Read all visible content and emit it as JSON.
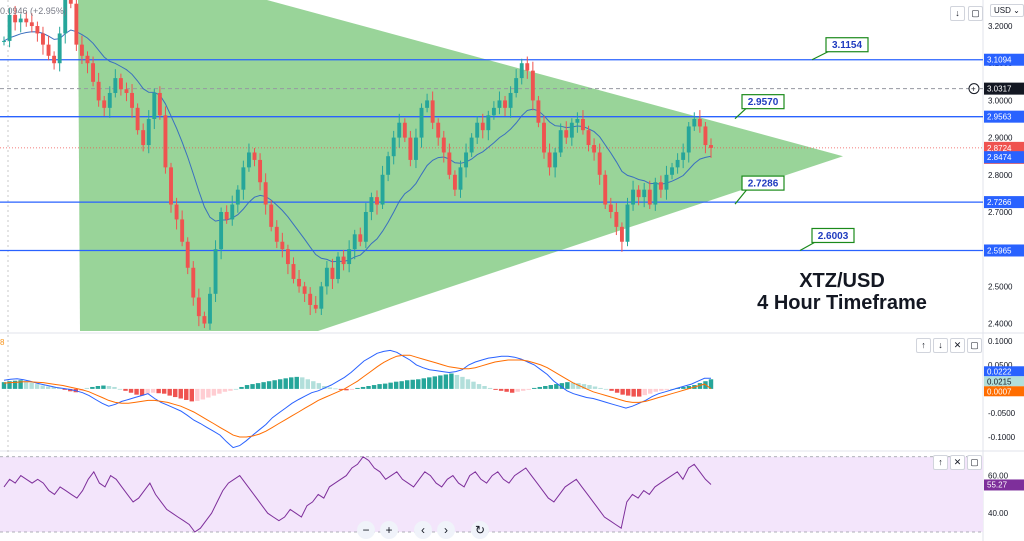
{
  "header": {
    "ticker_change": "0.0946 (+2.95%)",
    "currency_label": "USD",
    "currency_chevron": "chevron-down-icon"
  },
  "side_fragment": "8",
  "toolbar": {
    "main_pane_icons": [
      "arrow-down-icon",
      "maximize-icon"
    ],
    "macd_pane_icons": [
      "arrow-up-icon",
      "arrow-down-icon",
      "close-icon",
      "maximize-icon"
    ],
    "rsi_pane_icons": [
      "arrow-up-icon",
      "close-icon",
      "maximize-icon"
    ]
  },
  "navigation": {
    "buttons": [
      {
        "icon": "minus-icon",
        "glyph": "−"
      },
      {
        "icon": "plus-icon",
        "glyph": "+"
      },
      {
        "icon": "chevron-left-icon",
        "glyph": "‹"
      },
      {
        "icon": "chevron-right-icon",
        "glyph": "›"
      },
      {
        "icon": "reset-icon",
        "glyph": "↻"
      }
    ]
  },
  "colors": {
    "up": "#26a69a",
    "down": "#ef5350",
    "triangle": "#7fc97f",
    "hline": "#2962ff",
    "ma": "#3a6fbf",
    "macd_line": "#2962ff",
    "signal_line": "#ff6d00",
    "rsi_line": "#7e2f9b",
    "rsi_band": "#f3e5fb",
    "price_badge": "#ef5350",
    "current_dark": "#131722",
    "fast_ma_badge": "#2962ff"
  },
  "chart_data": [
    {
      "type": "candlestick",
      "title": "XTZ/USD",
      "subtitle": "4 Hour Timeframe",
      "ylim": [
        2.38,
        3.27
      ],
      "y_ticks": [
        2.4,
        2.5,
        2.6,
        2.7,
        2.8,
        2.9,
        3.0,
        3.1,
        3.2
      ],
      "y_tick_labels": [
        "2.4000",
        "2.5000",
        "2.6000",
        "2.7000",
        "2.8000",
        "2.9000",
        "3.0000",
        "3.1000",
        "3.2000"
      ],
      "close_path": [
        3.16,
        3.23,
        3.21,
        3.22,
        3.21,
        3.2,
        3.18,
        3.15,
        3.12,
        3.1,
        3.18,
        3.28,
        3.26,
        3.15,
        3.12,
        3.1,
        3.05,
        3.0,
        2.98,
        3.02,
        3.06,
        3.03,
        3.02,
        2.98,
        2.92,
        2.88,
        2.95,
        3.02,
        2.96,
        2.82,
        2.72,
        2.68,
        2.62,
        2.55,
        2.47,
        2.42,
        2.4,
        2.48,
        2.6,
        2.7,
        2.68,
        2.72,
        2.76,
        2.82,
        2.86,
        2.84,
        2.78,
        2.72,
        2.66,
        2.62,
        2.6,
        2.56,
        2.52,
        2.5,
        2.48,
        2.45,
        2.44,
        2.5,
        2.55,
        2.52,
        2.58,
        2.56,
        2.6,
        2.64,
        2.62,
        2.7,
        2.74,
        2.72,
        2.8,
        2.85,
        2.9,
        2.94,
        2.9,
        2.84,
        2.9,
        2.98,
        3.0,
        2.94,
        2.9,
        2.86,
        2.8,
        2.76,
        2.82,
        2.86,
        2.9,
        2.94,
        2.92,
        2.96,
        2.98,
        3.0,
        2.98,
        3.02,
        3.06,
        3.1,
        3.08,
        3.0,
        2.94,
        2.86,
        2.82,
        2.86,
        2.92,
        2.9,
        2.94,
        2.95,
        2.92,
        2.88,
        2.86,
        2.8,
        2.72,
        2.7,
        2.66,
        2.62,
        2.72,
        2.76,
        2.74,
        2.76,
        2.72,
        2.78,
        2.76,
        2.8,
        2.82,
        2.84,
        2.86,
        2.93,
        2.95,
        2.93,
        2.88,
        2.8724
      ],
      "horizontal_levels": [
        {
          "value": 3.1094,
          "label": "3.1094"
        },
        {
          "value": 2.9563,
          "label": "2.9563"
        },
        {
          "value": 2.7266,
          "label": "2.7266"
        },
        {
          "value": 2.5965,
          "label": "2.5965"
        }
      ],
      "dashed_level": {
        "value": 3.0317,
        "label": "3.0317"
      },
      "current_price": {
        "value": 2.8724,
        "label": "2.8724",
        "countdown": "55:08"
      },
      "moving_average": {
        "value": 2.8474,
        "label": "2.8474"
      },
      "annotations": [
        {
          "text": "3.1154",
          "value": 3.1154
        },
        {
          "text": "2.9570",
          "value": 2.957
        },
        {
          "text": "2.7286",
          "value": 2.7286
        },
        {
          "text": "2.6003",
          "value": 2.6003
        }
      ],
      "pattern": {
        "type": "symmetrical-triangle",
        "top": 3.27,
        "bottom": 2.38,
        "apex": 2.85
      }
    },
    {
      "type": "bar+line",
      "name": "MACD",
      "ylim": [
        -0.125,
        0.11
      ],
      "y_ticks": [
        0.1,
        0.05,
        0.0,
        -0.05,
        -0.1
      ],
      "y_tick_labels": [
        "0.1000",
        "0.0500",
        "0.0000",
        "-0.0500",
        "-0.1000"
      ],
      "histogram": [
        0.014,
        0.016,
        0.017,
        0.018,
        0.016,
        0.013,
        0.01,
        0.007,
        0.005,
        0.004,
        0.002,
        -0.002,
        -0.005,
        -0.007,
        -0.004,
        0.002,
        0.004,
        0.006,
        0.007,
        0.006,
        0.004,
        0.0,
        -0.004,
        -0.008,
        -0.012,
        -0.014,
        -0.01,
        -0.008,
        -0.009,
        -0.01,
        -0.014,
        -0.017,
        -0.02,
        -0.023,
        -0.026,
        -0.025,
        -0.022,
        -0.018,
        -0.014,
        -0.01,
        -0.006,
        -0.004,
        0.0,
        0.004,
        0.008,
        0.01,
        0.012,
        0.014,
        0.016,
        0.018,
        0.02,
        0.022,
        0.024,
        0.025,
        0.024,
        0.02,
        0.016,
        0.012,
        0.006,
        0.003,
        0.001,
        -0.002,
        -0.003,
        -0.002,
        0.002,
        0.004,
        0.006,
        0.008,
        0.01,
        0.011,
        0.013,
        0.015,
        0.016,
        0.018,
        0.019,
        0.02,
        0.022,
        0.024,
        0.026,
        0.028,
        0.03,
        0.032,
        0.029,
        0.025,
        0.02,
        0.015,
        0.01,
        0.006,
        0.002,
        -0.002,
        -0.004,
        -0.006,
        -0.008,
        -0.006,
        -0.004,
        -0.002,
        0.002,
        0.004,
        0.006,
        0.008,
        0.01,
        0.012,
        0.014,
        0.013,
        0.012,
        0.01,
        0.008,
        0.005,
        0.002,
        0.0,
        -0.004,
        -0.008,
        -0.012,
        -0.014,
        -0.016,
        -0.016,
        -0.013,
        -0.01,
        -0.006,
        -0.004,
        -0.002,
        0.0,
        0.002,
        0.004,
        0.006,
        0.008,
        0.012,
        0.016,
        0.02
      ],
      "macd_line": [
        0.018,
        0.02,
        0.021,
        0.019,
        0.016,
        0.012,
        0.009,
        0.006,
        0.003,
        0.001,
        -0.001,
        -0.004,
        -0.008,
        -0.014,
        -0.022,
        -0.03,
        -0.036,
        -0.032,
        -0.026,
        -0.022,
        -0.018,
        -0.014,
        -0.01,
        -0.02,
        -0.028,
        -0.034,
        -0.04,
        -0.046,
        -0.055,
        -0.065,
        -0.072,
        -0.08,
        -0.088,
        -0.096,
        -0.11,
        -0.122,
        -0.118,
        -0.108,
        -0.096,
        -0.085,
        -0.074,
        -0.06,
        -0.05,
        -0.04,
        -0.03,
        -0.022,
        -0.015,
        -0.008,
        -0.004,
        0.002,
        0.008,
        0.016,
        0.024,
        0.034,
        0.046,
        0.058,
        0.066,
        0.074,
        0.078,
        0.08,
        0.076,
        0.068,
        0.06,
        0.05,
        0.044,
        0.04,
        0.038,
        0.036,
        0.034,
        0.036,
        0.04,
        0.05,
        0.056,
        0.06,
        0.064,
        0.066,
        0.068,
        0.068,
        0.066,
        0.062,
        0.056,
        0.05,
        0.04,
        0.03,
        0.016,
        0.006,
        -0.004,
        -0.01,
        -0.014,
        -0.018,
        -0.02,
        -0.024,
        -0.028,
        -0.032,
        -0.036,
        -0.04,
        -0.036,
        -0.03,
        -0.024,
        -0.016,
        -0.01,
        -0.006,
        -0.002,
        0.002,
        0.006,
        0.01,
        0.016,
        0.022,
        0.0222
      ],
      "signal_line": [
        0.012,
        0.013,
        0.014,
        0.015,
        0.015,
        0.014,
        0.013,
        0.011,
        0.009,
        0.007,
        0.004,
        0.001,
        -0.002,
        -0.006,
        -0.012,
        -0.018,
        -0.024,
        -0.028,
        -0.03,
        -0.03,
        -0.028,
        -0.026,
        -0.024,
        -0.024,
        -0.026,
        -0.028,
        -0.032,
        -0.036,
        -0.042,
        -0.048,
        -0.056,
        -0.064,
        -0.072,
        -0.08,
        -0.088,
        -0.096,
        -0.1,
        -0.1,
        -0.098,
        -0.094,
        -0.088,
        -0.08,
        -0.072,
        -0.064,
        -0.056,
        -0.048,
        -0.04,
        -0.032,
        -0.024,
        -0.018,
        -0.012,
        -0.006,
        0.0,
        0.008,
        0.016,
        0.026,
        0.036,
        0.046,
        0.055,
        0.062,
        0.068,
        0.07,
        0.07,
        0.066,
        0.062,
        0.058,
        0.054,
        0.05,
        0.046,
        0.044,
        0.042,
        0.042,
        0.044,
        0.048,
        0.052,
        0.056,
        0.058,
        0.06,
        0.06,
        0.06,
        0.058,
        0.054,
        0.05,
        0.044,
        0.036,
        0.028,
        0.02,
        0.012,
        0.006,
        0.0,
        -0.006,
        -0.01,
        -0.014,
        -0.018,
        -0.022,
        -0.026,
        -0.028,
        -0.028,
        -0.026,
        -0.022,
        -0.018,
        -0.014,
        -0.01,
        -0.006,
        -0.002,
        0.002,
        0.006,
        0.01,
        0.0007
      ],
      "badges": [
        {
          "value": 0.0222,
          "label": "0.0222"
        },
        {
          "value": 0.0215,
          "label": "0.0215"
        },
        {
          "value": 0.0007,
          "label": "0.0007"
        }
      ]
    },
    {
      "type": "line",
      "name": "RSI",
      "ylim": [
        30,
        72
      ],
      "y_ticks": [
        60.0,
        40.0
      ],
      "y_tick_labels": [
        "60.00",
        "40.00"
      ],
      "band": [
        30,
        70
      ],
      "values": [
        54,
        58,
        56,
        60,
        58,
        56,
        58,
        56,
        52,
        50,
        54,
        52,
        50,
        48,
        52,
        58,
        62,
        56,
        54,
        60,
        58,
        54,
        50,
        46,
        48,
        52,
        56,
        50,
        46,
        42,
        40,
        38,
        36,
        34,
        30,
        32,
        36,
        40,
        46,
        52,
        56,
        58,
        60,
        56,
        52,
        48,
        44,
        40,
        38,
        36,
        38,
        42,
        40,
        38,
        44,
        46,
        50,
        48,
        54,
        56,
        58,
        60,
        64,
        66,
        70,
        68,
        64,
        62,
        58,
        60,
        62,
        58,
        56,
        54,
        58,
        62,
        60,
        56,
        54,
        58,
        60,
        56,
        54,
        60,
        62,
        58,
        56,
        60,
        62,
        58,
        56,
        60,
        62,
        64,
        60,
        56,
        52,
        48,
        46,
        50,
        54,
        56,
        58,
        54,
        50,
        46,
        42,
        38,
        36,
        34,
        32,
        46,
        50,
        48,
        52,
        50,
        54,
        56,
        58,
        60,
        62,
        58,
        64,
        66,
        62,
        58,
        55.27
      ],
      "badge": {
        "value": 55.27,
        "label": "55.27"
      }
    }
  ]
}
